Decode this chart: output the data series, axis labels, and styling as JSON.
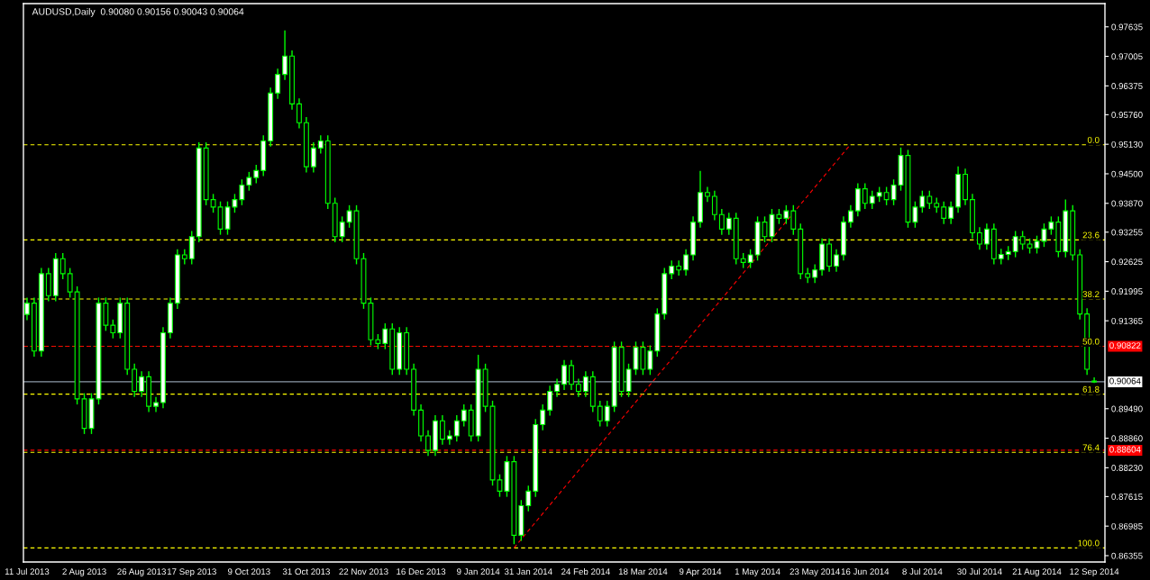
{
  "chart_data": {
    "type": "candlestick",
    "title": "AUDUSD,Daily  0.90080 0.90156 0.90043 0.90064",
    "color": "#00ff00",
    "categories": [
      "11 Jul 2013",
      null,
      null,
      null,
      null,
      null,
      null,
      null,
      "2 Aug 2013",
      null,
      null,
      null,
      null,
      null,
      null,
      null,
      "26 Aug 2013",
      null,
      null,
      null,
      null,
      null,
      null,
      "17 Sep 2013",
      null,
      null,
      null,
      null,
      null,
      null,
      null,
      "9 Oct 2013",
      null,
      null,
      null,
      null,
      null,
      null,
      null,
      "31 Oct 2013",
      null,
      null,
      null,
      null,
      null,
      null,
      null,
      "22 Nov 2013",
      null,
      null,
      null,
      null,
      null,
      null,
      null,
      "16 Dec 2013",
      null,
      null,
      null,
      null,
      null,
      null,
      null,
      "9 Jan 2014",
      null,
      null,
      null,
      null,
      null,
      null,
      "31 Jan 2014",
      null,
      null,
      null,
      null,
      null,
      null,
      null,
      "24 Feb 2014",
      null,
      null,
      null,
      null,
      null,
      null,
      null,
      "18 Mar 2014",
      null,
      null,
      null,
      null,
      null,
      null,
      null,
      "9 Apr 2014",
      null,
      null,
      null,
      null,
      null,
      null,
      null,
      "1 May 2014",
      null,
      null,
      null,
      null,
      null,
      null,
      null,
      "23 May 2014",
      null,
      null,
      null,
      null,
      null,
      null,
      "16 Jun 2014",
      null,
      null,
      null,
      null,
      null,
      null,
      null,
      "8 Jul 2014",
      null,
      null,
      null,
      null,
      null,
      null,
      null,
      "30 Jul 2014",
      null,
      null,
      null,
      null,
      null,
      null,
      null,
      "21 Aug 2014",
      null,
      null,
      null,
      null,
      null,
      null,
      null,
      "12 Sep 2014"
    ],
    "ohlc": [
      [
        0.915,
        0.9186,
        0.9138,
        0.9174
      ],
      [
        0.9174,
        0.9186,
        0.906,
        0.9072
      ],
      [
        0.9072,
        0.9249,
        0.906,
        0.9237
      ],
      [
        0.9237,
        0.9249,
        0.9178,
        0.919
      ],
      [
        0.919,
        0.9281,
        0.9178,
        0.9269
      ],
      [
        0.9269,
        0.9281,
        0.9225,
        0.9237
      ],
      [
        0.9237,
        0.9249,
        0.9186,
        0.9198
      ],
      [
        0.9198,
        0.921,
        0.8958,
        0.897
      ],
      [
        0.897,
        0.8982,
        0.8895,
        0.8907
      ],
      [
        0.8907,
        0.8982,
        0.8895,
        0.897
      ],
      [
        0.897,
        0.9186,
        0.8958,
        0.9174
      ],
      [
        0.9174,
        0.9186,
        0.9115,
        0.9127
      ],
      [
        0.9127,
        0.9139,
        0.9099,
        0.9111
      ],
      [
        0.9111,
        0.9186,
        0.9099,
        0.9174
      ],
      [
        0.9174,
        0.9186,
        0.9021,
        0.9033
      ],
      [
        0.9033,
        0.9045,
        0.8974,
        0.8986
      ],
      [
        0.8986,
        0.9029,
        0.8974,
        0.9017
      ],
      [
        0.9017,
        0.9029,
        0.8942,
        0.8954
      ],
      [
        0.8954,
        0.8974,
        0.8942,
        0.8962
      ],
      [
        0.8962,
        0.9123,
        0.895,
        0.9111
      ],
      [
        0.9111,
        0.9186,
        0.9099,
        0.9174
      ],
      [
        0.9174,
        0.9289,
        0.9162,
        0.9277
      ],
      [
        0.9277,
        0.9289,
        0.9257,
        0.9269
      ],
      [
        0.9269,
        0.9328,
        0.9257,
        0.9316
      ],
      [
        0.9316,
        0.9517,
        0.9304,
        0.9505
      ],
      [
        0.9505,
        0.9517,
        0.9383,
        0.9395
      ],
      [
        0.9395,
        0.9407,
        0.9367,
        0.9379
      ],
      [
        0.9379,
        0.9391,
        0.932,
        0.9332
      ],
      [
        0.9332,
        0.9391,
        0.932,
        0.9379
      ],
      [
        0.9379,
        0.9407,
        0.9367,
        0.9395
      ],
      [
        0.9395,
        0.9438,
        0.9383,
        0.9426
      ],
      [
        0.9426,
        0.9454,
        0.9414,
        0.9442
      ],
      [
        0.9442,
        0.9469,
        0.943,
        0.9457
      ],
      [
        0.9457,
        0.9532,
        0.9445,
        0.952
      ],
      [
        0.952,
        0.9634,
        0.9508,
        0.9622
      ],
      [
        0.9622,
        0.9674,
        0.961,
        0.9662
      ],
      [
        0.9662,
        0.9756,
        0.965,
        0.9701
      ],
      [
        0.9701,
        0.9713,
        0.9587,
        0.9599
      ],
      [
        0.9599,
        0.9611,
        0.9547,
        0.9559
      ],
      [
        0.9559,
        0.9571,
        0.9453,
        0.9465
      ],
      [
        0.9465,
        0.9517,
        0.9453,
        0.9505
      ],
      [
        0.9505,
        0.9532,
        0.9493,
        0.952
      ],
      [
        0.952,
        0.9532,
        0.9375,
        0.9387
      ],
      [
        0.9387,
        0.9399,
        0.9304,
        0.9316
      ],
      [
        0.9316,
        0.9359,
        0.9304,
        0.9347
      ],
      [
        0.9347,
        0.9383,
        0.9335,
        0.9371
      ],
      [
        0.9371,
        0.9383,
        0.9257,
        0.9269
      ],
      [
        0.9269,
        0.9281,
        0.9162,
        0.9174
      ],
      [
        0.9174,
        0.9186,
        0.9084,
        0.9096
      ],
      [
        0.9096,
        0.9108,
        0.9076,
        0.9088
      ],
      [
        0.9088,
        0.9131,
        0.9076,
        0.9119
      ],
      [
        0.9119,
        0.9131,
        0.9021,
        0.9033
      ],
      [
        0.9033,
        0.9123,
        0.9021,
        0.9111
      ],
      [
        0.9111,
        0.9123,
        0.9021,
        0.9033
      ],
      [
        0.9033,
        0.9045,
        0.8934,
        0.8946
      ],
      [
        0.8946,
        0.8958,
        0.8879,
        0.8891
      ],
      [
        0.8891,
        0.8903,
        0.8848,
        0.886
      ],
      [
        0.886,
        0.8935,
        0.8848,
        0.8923
      ],
      [
        0.8923,
        0.8935,
        0.8872,
        0.8884
      ],
      [
        0.8884,
        0.8903,
        0.8872,
        0.8891
      ],
      [
        0.8891,
        0.8935,
        0.8879,
        0.8923
      ],
      [
        0.8923,
        0.8958,
        0.8911,
        0.8946
      ],
      [
        0.8946,
        0.8958,
        0.8879,
        0.8891
      ],
      [
        0.8891,
        0.9064,
        0.8879,
        0.9033
      ],
      [
        0.9033,
        0.9045,
        0.8942,
        0.8954
      ],
      [
        0.8954,
        0.8966,
        0.8785,
        0.8797
      ],
      [
        0.8797,
        0.8809,
        0.8761,
        0.8773
      ],
      [
        0.8773,
        0.8848,
        0.8761,
        0.8836
      ],
      [
        0.8836,
        0.8848,
        0.866,
        0.8679
      ],
      [
        0.8679,
        0.8754,
        0.8667,
        0.8742
      ],
      [
        0.8742,
        0.8785,
        0.873,
        0.8773
      ],
      [
        0.8773,
        0.8927,
        0.8761,
        0.8915
      ],
      [
        0.8915,
        0.8958,
        0.8903,
        0.8946
      ],
      [
        0.8946,
        0.8998,
        0.8934,
        0.8986
      ],
      [
        0.8986,
        0.9013,
        0.8974,
        0.9001
      ],
      [
        0.9001,
        0.9053,
        0.8989,
        0.9041
      ],
      [
        0.9041,
        0.9053,
        0.8989,
        0.9001
      ],
      [
        0.9001,
        0.9013,
        0.8974,
        0.8986
      ],
      [
        0.8986,
        0.9029,
        0.8974,
        0.9017
      ],
      [
        0.9017,
        0.9029,
        0.8942,
        0.8954
      ],
      [
        0.8954,
        0.8966,
        0.8911,
        0.8923
      ],
      [
        0.8923,
        0.8966,
        0.8911,
        0.8954
      ],
      [
        0.8954,
        0.9092,
        0.8942,
        0.908
      ],
      [
        0.908,
        0.9092,
        0.8974,
        0.8986
      ],
      [
        0.8986,
        0.9045,
        0.8974,
        0.9033
      ],
      [
        0.9033,
        0.9092,
        0.9021,
        0.908
      ],
      [
        0.908,
        0.9092,
        0.9021,
        0.9033
      ],
      [
        0.9033,
        0.9084,
        0.9021,
        0.9072
      ],
      [
        0.9072,
        0.9163,
        0.906,
        0.9151
      ],
      [
        0.9151,
        0.9249,
        0.9139,
        0.9237
      ],
      [
        0.9237,
        0.9265,
        0.9225,
        0.9253
      ],
      [
        0.9253,
        0.9265,
        0.9233,
        0.9245
      ],
      [
        0.9245,
        0.9289,
        0.9233,
        0.9277
      ],
      [
        0.9277,
        0.9359,
        0.9265,
        0.9347
      ],
      [
        0.9347,
        0.9456,
        0.9335,
        0.941
      ],
      [
        0.941,
        0.9422,
        0.939,
        0.9402
      ],
      [
        0.9402,
        0.9414,
        0.9351,
        0.9363
      ],
      [
        0.9363,
        0.9375,
        0.932,
        0.9332
      ],
      [
        0.9332,
        0.9367,
        0.932,
        0.9355
      ],
      [
        0.9355,
        0.9367,
        0.9257,
        0.9269
      ],
      [
        0.9269,
        0.9281,
        0.9249,
        0.9261
      ],
      [
        0.9261,
        0.9289,
        0.9249,
        0.9277
      ],
      [
        0.9277,
        0.9359,
        0.9265,
        0.9347
      ],
      [
        0.9347,
        0.9359,
        0.9304,
        0.9316
      ],
      [
        0.9316,
        0.9375,
        0.9304,
        0.9363
      ],
      [
        0.9363,
        0.9375,
        0.9343,
        0.9355
      ],
      [
        0.9355,
        0.9383,
        0.9343,
        0.9371
      ],
      [
        0.9371,
        0.9383,
        0.932,
        0.9332
      ],
      [
        0.9332,
        0.9344,
        0.9225,
        0.9237
      ],
      [
        0.9237,
        0.9249,
        0.9217,
        0.9229
      ],
      [
        0.9229,
        0.9257,
        0.9217,
        0.9245
      ],
      [
        0.9245,
        0.9312,
        0.9233,
        0.93
      ],
      [
        0.93,
        0.9312,
        0.9241,
        0.9253
      ],
      [
        0.9253,
        0.9289,
        0.9241,
        0.9277
      ],
      [
        0.9277,
        0.9359,
        0.9265,
        0.9347
      ],
      [
        0.9347,
        0.9383,
        0.9335,
        0.9371
      ],
      [
        0.9371,
        0.943,
        0.9359,
        0.9418
      ],
      [
        0.9418,
        0.943,
        0.9375,
        0.9387
      ],
      [
        0.9387,
        0.9414,
        0.9375,
        0.9402
      ],
      [
        0.9402,
        0.9422,
        0.939,
        0.941
      ],
      [
        0.941,
        0.9422,
        0.9383,
        0.9395
      ],
      [
        0.9395,
        0.9438,
        0.9383,
        0.9426
      ],
      [
        0.9426,
        0.9506,
        0.9414,
        0.9489
      ],
      [
        0.9489,
        0.9501,
        0.9335,
        0.9347
      ],
      [
        0.9347,
        0.9391,
        0.9335,
        0.9379
      ],
      [
        0.9379,
        0.9414,
        0.9367,
        0.9402
      ],
      [
        0.9402,
        0.9414,
        0.9375,
        0.9387
      ],
      [
        0.9387,
        0.9399,
        0.9367,
        0.9379
      ],
      [
        0.9379,
        0.9391,
        0.9343,
        0.9355
      ],
      [
        0.9355,
        0.9391,
        0.9343,
        0.9379
      ],
      [
        0.9379,
        0.9466,
        0.9367,
        0.9449
      ],
      [
        0.9449,
        0.9461,
        0.9383,
        0.9395
      ],
      [
        0.9395,
        0.9407,
        0.9312,
        0.9324
      ],
      [
        0.9324,
        0.9336,
        0.9288,
        0.93
      ],
      [
        0.93,
        0.9344,
        0.9288,
        0.9332
      ],
      [
        0.9332,
        0.9344,
        0.9257,
        0.9269
      ],
      [
        0.9269,
        0.929,
        0.9257,
        0.9278
      ],
      [
        0.9278,
        0.9296,
        0.9266,
        0.9284
      ],
      [
        0.9284,
        0.9328,
        0.9272,
        0.9316
      ],
      [
        0.9316,
        0.9328,
        0.9288,
        0.93
      ],
      [
        0.93,
        0.9312,
        0.928,
        0.9292
      ],
      [
        0.9292,
        0.9318,
        0.928,
        0.9306
      ],
      [
        0.9306,
        0.9344,
        0.9294,
        0.9332
      ],
      [
        0.9332,
        0.9359,
        0.932,
        0.9347
      ],
      [
        0.9347,
        0.9359,
        0.9272,
        0.9284
      ],
      [
        0.9284,
        0.9395,
        0.9272,
        0.9371
      ],
      [
        0.9371,
        0.9383,
        0.9265,
        0.9277
      ],
      [
        0.9277,
        0.9289,
        0.9139,
        0.9151
      ],
      [
        0.9151,
        0.9163,
        0.9021,
        0.9033
      ],
      [
        0.9008,
        0.9016,
        0.9004,
        0.9006
      ]
    ],
    "series": [
      {
        "type": "line",
        "color": "#ff0000",
        "line_style": "dashed",
        "values": [
          null,
          null,
          null,
          null,
          null,
          null,
          null,
          null,
          null,
          null,
          null,
          null,
          null,
          null,
          null,
          null,
          null,
          null,
          null,
          null,
          null,
          null,
          null,
          null,
          null,
          null,
          null,
          null,
          null,
          null,
          null,
          null,
          null,
          null,
          null,
          null,
          null,
          null,
          null,
          null,
          null,
          null,
          null,
          null,
          null,
          null,
          null,
          null,
          null,
          null,
          null,
          null,
          null,
          null,
          null,
          null,
          null,
          null,
          null,
          null,
          null,
          null,
          null,
          null,
          null,
          null,
          null,
          null,
          0.8652,
          null,
          null,
          null,
          null,
          null,
          null,
          null,
          null,
          null,
          null,
          null,
          null,
          null,
          null,
          null,
          null,
          null,
          null,
          null,
          null,
          null,
          null,
          null,
          null,
          null,
          null,
          null,
          null,
          null,
          null,
          null,
          null,
          null,
          null,
          null,
          null,
          null,
          null,
          null,
          null,
          null,
          null,
          null,
          null,
          null,
          null,
          0.9513,
          null,
          null,
          null,
          null,
          null,
          null,
          null,
          null,
          null,
          null,
          null,
          null,
          null,
          null,
          null,
          null,
          null,
          null,
          null,
          null,
          null,
          null,
          null,
          null,
          null,
          null,
          null,
          null,
          null,
          null,
          null,
          null,
          null,
          null
        ]
      }
    ],
    "ylim": [
      0.8622,
      0.9813
    ],
    "yticks": [
      0.97635,
      0.97005,
      0.96375,
      {
        "value": 0.9576,
        "label": "0.95760"
      },
      {
        "value": 0.9513,
        "label": "0.95130"
      },
      {
        "value": 0.945,
        "label": "0.94500"
      },
      {
        "value": 0.9387,
        "label": "0.93870"
      },
      0.93255,
      0.92625,
      0.91995,
      0.91365,
      {
        "value": 0.8949,
        "label": "0.89490"
      },
      {
        "value": 0.8886,
        "label": "0.88860"
      },
      {
        "value": 0.8823,
        "label": "0.88230"
      },
      0.87615,
      0.86985,
      0.86355
    ],
    "annotations": [
      {
        "text": "0.0",
        "y": 0.9512
      },
      {
        "text": "23.6",
        "y": 0.9309
      },
      {
        "text": "38.2",
        "y": 0.9183
      },
      {
        "text": "50.0",
        "y": 0.9082
      },
      {
        "text": "61.8",
        "y": 0.898
      },
      {
        "text": "76.4",
        "y": 0.8856
      },
      {
        "text": "100.0",
        "y": 0.8652
      }
    ],
    "ref_lines": [
      {
        "axis": "y",
        "value": 0.9512,
        "color": "#ffff00",
        "line_style": "dashed"
      },
      {
        "axis": "y",
        "value": 0.9309,
        "color": "#ffff00",
        "line_style": "dashed"
      },
      {
        "axis": "y",
        "value": 0.9183,
        "color": "#ffff00",
        "line_style": "dashed"
      },
      {
        "axis": "y",
        "value": 0.9082,
        "color": "#ffff00",
        "line_style": "dashed"
      },
      {
        "axis": "y",
        "value": 0.898,
        "color": "#ffff00",
        "line_style": "dashed"
      },
      {
        "axis": "y",
        "value": 0.8856,
        "color": "#ffff00",
        "line_style": "dashed"
      },
      {
        "axis": "y",
        "value": 0.8652,
        "color": "#ffff00",
        "line_style": "dashed"
      },
      {
        "axis": "y",
        "value": 0.90822,
        "label": "0.90822",
        "color": "#ff0000",
        "line_style": "dashed"
      },
      {
        "axis": "y",
        "value": 0.88604,
        "label": "0.88604",
        "color": "#ff0000",
        "line_style": "dashed"
      },
      {
        "axis": "y",
        "value": 0.90064,
        "label": "0.90064",
        "color": "#8c9aa8",
        "line_style": "solid"
      }
    ],
    "grid": false
  }
}
